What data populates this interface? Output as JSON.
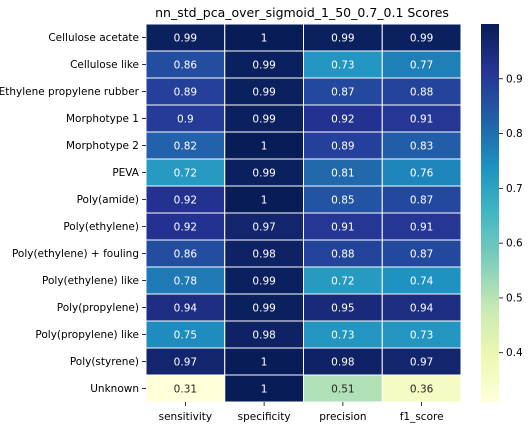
{
  "chart_data": {
    "type": "heatmap",
    "title": "nn_std_pca_over_sigmoid_1_50_0.7_0.1 Scores",
    "columns": [
      "sensitivity",
      "specificity",
      "precision",
      "f1_score"
    ],
    "rows": [
      "Cellulose acetate",
      "Cellulose like",
      "Ethylene propylene rubber",
      "Morphotype 1",
      "Morphotype 2",
      "PEVA",
      "Poly(amide)",
      "Poly(ethylene)",
      "Poly(ethylene) + fouling",
      "Poly(ethylene) like",
      "Poly(propylene)",
      "Poly(propylene) like",
      "Poly(styrene)",
      "Unknown"
    ],
    "values": [
      [
        0.99,
        1,
        0.99,
        0.99
      ],
      [
        0.86,
        0.99,
        0.73,
        0.77
      ],
      [
        0.89,
        0.99,
        0.87,
        0.88
      ],
      [
        0.9,
        0.99,
        0.92,
        0.91
      ],
      [
        0.82,
        1,
        0.89,
        0.83
      ],
      [
        0.72,
        0.99,
        0.81,
        0.76
      ],
      [
        0.92,
        1,
        0.85,
        0.87
      ],
      [
        0.92,
        0.97,
        0.91,
        0.91
      ],
      [
        0.86,
        0.98,
        0.88,
        0.87
      ],
      [
        0.78,
        0.99,
        0.72,
        0.74
      ],
      [
        0.94,
        0.99,
        0.95,
        0.94
      ],
      [
        0.75,
        0.98,
        0.73,
        0.73
      ],
      [
        0.97,
        1,
        0.98,
        0.97
      ],
      [
        0.31,
        1,
        0.51,
        0.36
      ]
    ],
    "colormap": "YlGnBu",
    "color_range": [
      0.31,
      1.0
    ],
    "colorbar_ticks": [
      0.4,
      0.5,
      0.6,
      0.7,
      0.8,
      0.9
    ]
  }
}
